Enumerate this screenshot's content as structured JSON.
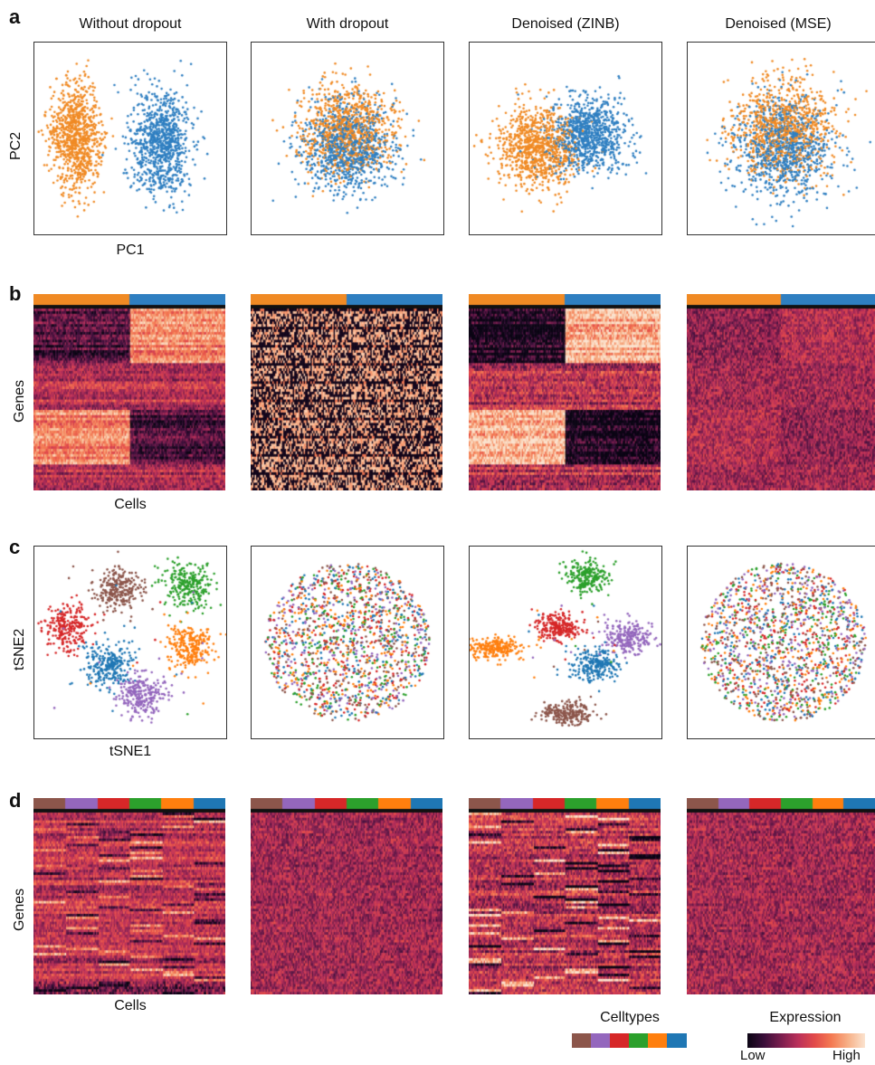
{
  "panel_labels": [
    "a",
    "b",
    "c",
    "d"
  ],
  "column_titles": [
    "Without dropout",
    "With dropout",
    "Denoised (ZINB)",
    "Denoised (MSE)"
  ],
  "axis_labels": {
    "a_y": "PC2",
    "a_x": "PC1",
    "b_y": "Genes",
    "b_x": "Cells",
    "c_y": "tSNE2",
    "c_x": "tSNE1",
    "d_y": "Genes",
    "d_x": "Cells"
  },
  "legend": {
    "celltypes_title": "Celltypes",
    "expression_title": "Expression",
    "low_label": "Low",
    "high_label": "High"
  },
  "colors": {
    "group1": "#f08a24",
    "group2": "#2f7fc1",
    "celltypes": [
      "#8c564b",
      "#9467bd",
      "#d62728",
      "#2ca02c",
      "#ff7f0e",
      "#1f77b4"
    ],
    "colormap": [
      "#0b0514",
      "#3b0f3a",
      "#7a1e4e",
      "#b9305a",
      "#e24a4a",
      "#f47a52",
      "#f7b188",
      "#fbe3cf"
    ]
  },
  "chart_data": [
    {
      "type": "scatter",
      "panel": "a",
      "title": "Without dropout",
      "xlabel": "PC1",
      "ylabel": "PC2",
      "series": [
        {
          "name": "",
          "color": "#f08a24",
          "points": 900
        },
        {
          "name": "",
          "color": "#2f7fc1",
          "points": 900
        }
      ],
      "groups_separated": true
    },
    {
      "type": "scatter",
      "panel": "a",
      "title": "With dropout",
      "groups_separated": false
    },
    {
      "type": "scatter",
      "panel": "a",
      "title": "Denoised (ZINB)",
      "groups_separated": "partial"
    },
    {
      "type": "scatter",
      "panel": "a",
      "title": "Denoised (MSE)",
      "groups_separated": false
    },
    {
      "type": "heatmap",
      "panel": "b",
      "xlabel": "Cells",
      "ylabel": "Genes",
      "column_groups": 2
    },
    {
      "type": "scatter",
      "panel": "c",
      "xlabel": "tSNE1",
      "ylabel": "tSNE2",
      "clusters": 6
    },
    {
      "type": "heatmap",
      "panel": "d",
      "xlabel": "Cells",
      "ylabel": "Genes",
      "column_groups": 6
    }
  ]
}
